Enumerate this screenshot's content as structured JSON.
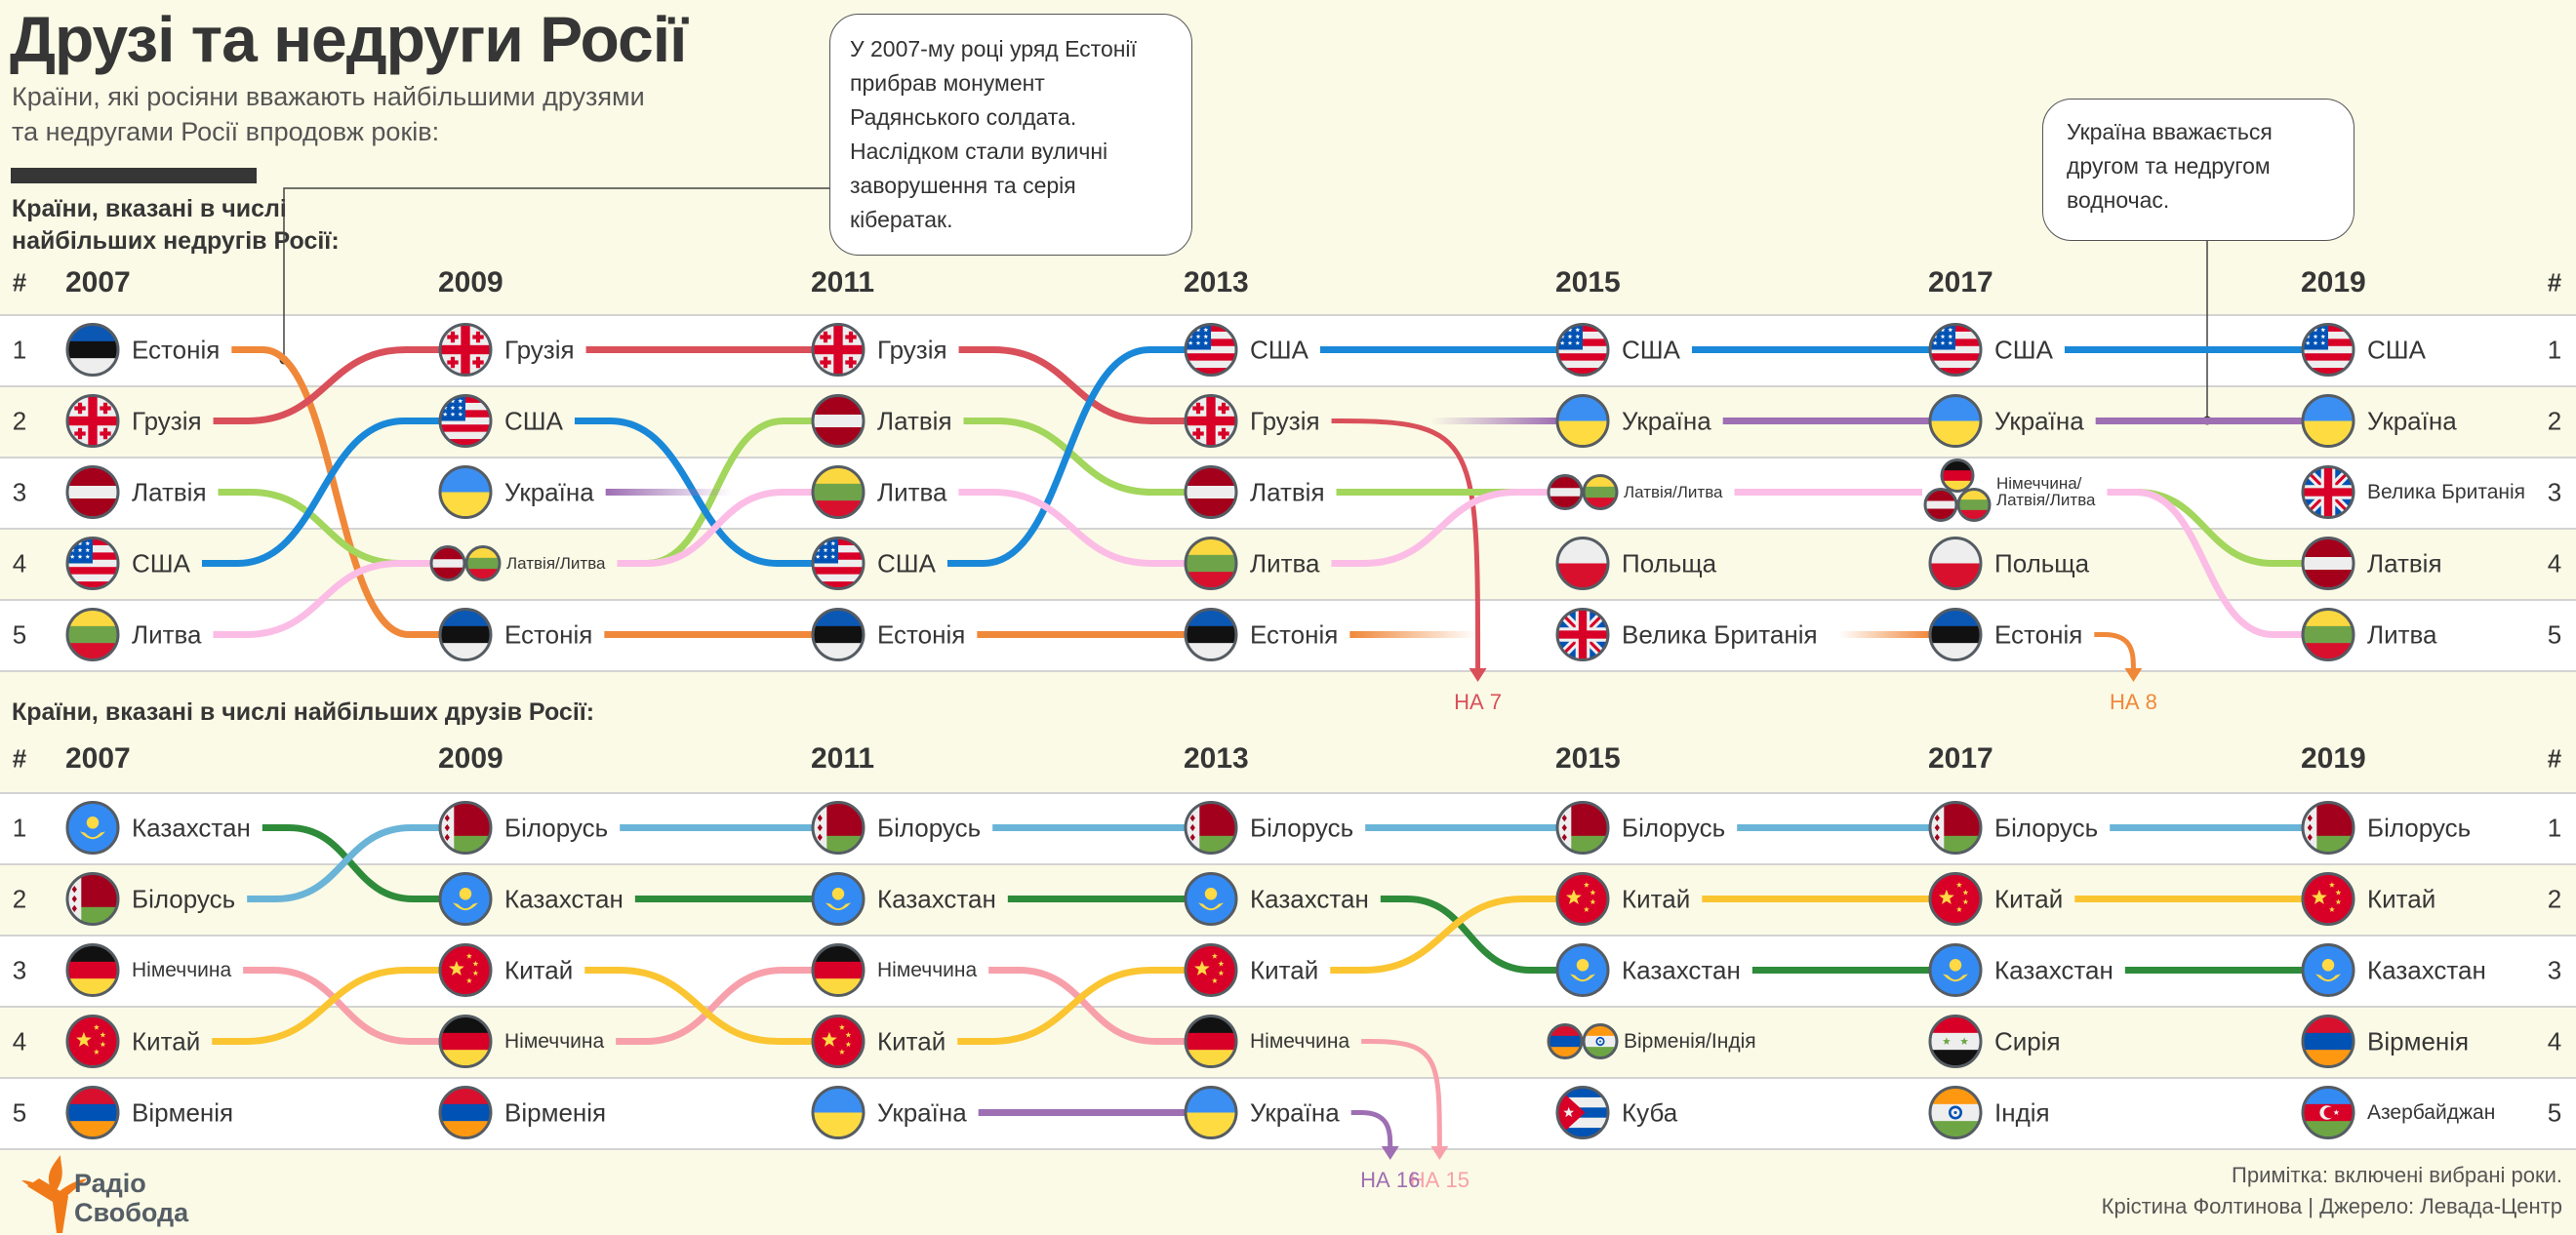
{
  "title": "Друзі та недруги Росії",
  "subtitle_lines": [
    "Країни, які росіяни вважають найбільшими друзями",
    "та недругами Росії впродовж років:"
  ],
  "years": [
    "2007",
    "2009",
    "2011",
    "2013",
    "2015",
    "2017",
    "2019"
  ],
  "rank_header": "#",
  "ranks": [
    "1",
    "2",
    "3",
    "4",
    "5"
  ],
  "callouts": {
    "estonia": "У 2007-му році уряд Естонії прибрав монумент Радянського солдата. Наслідком стали вуличні заворушення та серія кібератак.",
    "ukraine": "Україна вважається другом та недругом водночас."
  },
  "colors": {
    "estonia": "#f0883a",
    "georgia": "#d9505a",
    "latvia": "#a3d65c",
    "usa": "#1a88d8",
    "lithuania": "#fbbde6",
    "ukraine": "#9e6fb3",
    "kazakhstan": "#2e8b3a",
    "belarus": "#6ab4d8",
    "germany": "#f7a0ab",
    "china": "#fbc531"
  },
  "enemies": {
    "section_label_lines": [
      "Країни, вказані в числі",
      "найбільших недругів Росії:"
    ],
    "columns": [
      [
        {
          "flags": [
            "estonia"
          ],
          "label": "Естонія"
        },
        {
          "flags": [
            "georgia"
          ],
          "label": "Грузія"
        },
        {
          "flags": [
            "latvia"
          ],
          "label": "Латвія"
        },
        {
          "flags": [
            "usa"
          ],
          "label": "США"
        },
        {
          "flags": [
            "lithuania"
          ],
          "label": "Литва"
        }
      ],
      [
        {
          "flags": [
            "georgia"
          ],
          "label": "Грузія"
        },
        {
          "flags": [
            "usa"
          ],
          "label": "США"
        },
        {
          "flags": [
            "ukraine"
          ],
          "label": "Україна"
        },
        {
          "flags": [
            "latvia",
            "lithuania"
          ],
          "label": "Латвія/Литва",
          "size": "small"
        },
        {
          "flags": [
            "estonia"
          ],
          "label": "Естонія"
        }
      ],
      [
        {
          "flags": [
            "georgia"
          ],
          "label": "Грузія"
        },
        {
          "flags": [
            "latvia"
          ],
          "label": "Латвія"
        },
        {
          "flags": [
            "lithuania"
          ],
          "label": "Литва"
        },
        {
          "flags": [
            "usa"
          ],
          "label": "США"
        },
        {
          "flags": [
            "estonia"
          ],
          "label": "Естонія"
        }
      ],
      [
        {
          "flags": [
            "usa"
          ],
          "label": "США"
        },
        {
          "flags": [
            "georgia"
          ],
          "label": "Грузія"
        },
        {
          "flags": [
            "latvia"
          ],
          "label": "Латвія"
        },
        {
          "flags": [
            "lithuania"
          ],
          "label": "Литва"
        },
        {
          "flags": [
            "estonia"
          ],
          "label": "Естонія"
        }
      ],
      [
        {
          "flags": [
            "usa"
          ],
          "label": "США"
        },
        {
          "flags": [
            "ukraine"
          ],
          "label": "Україна"
        },
        {
          "flags": [
            "latvia",
            "lithuania"
          ],
          "label": "Латвія/Литва",
          "size": "small"
        },
        {
          "flags": [
            "poland"
          ],
          "label": "Польща"
        },
        {
          "flags": [
            "uk"
          ],
          "label": "Велика Британія"
        }
      ],
      [
        {
          "flags": [
            "usa"
          ],
          "label": "США"
        },
        {
          "flags": [
            "ukraine"
          ],
          "label": "Україна"
        },
        {
          "flags": [
            "germany",
            "latvia",
            "lithuania"
          ],
          "label": "Німеччина/\nЛатвія/Литва",
          "size": "small"
        },
        {
          "flags": [
            "poland"
          ],
          "label": "Польща"
        },
        {
          "flags": [
            "estonia"
          ],
          "label": "Естонія"
        }
      ],
      [
        {
          "flags": [
            "usa"
          ],
          "label": "США"
        },
        {
          "flags": [
            "ukraine"
          ],
          "label": "Україна"
        },
        {
          "flags": [
            "uk"
          ],
          "label": "Велика Британія",
          "size": "mid"
        },
        {
          "flags": [
            "latvia"
          ],
          "label": "Латвія"
        },
        {
          "flags": [
            "lithuania"
          ],
          "label": "Литва"
        }
      ]
    ],
    "tracks": [
      {
        "country": "estonia",
        "ranks": [
          1,
          5,
          5,
          5,
          null,
          5,
          null
        ],
        "fade": [
          [
            3,
            4
          ],
          [
            4,
            5
          ]
        ],
        "exit": {
          "from": 5,
          "label": "НА 8"
        }
      },
      {
        "country": "georgia",
        "ranks": [
          2,
          1,
          1,
          2,
          null,
          null,
          null
        ],
        "exit": {
          "from": 3,
          "label": "НА 7"
        }
      },
      {
        "country": "latvia",
        "ranks": [
          3,
          4,
          2,
          3,
          3,
          3,
          4
        ]
      },
      {
        "country": "usa",
        "ranks": [
          4,
          2,
          4,
          1,
          1,
          1,
          1
        ]
      },
      {
        "country": "lithuania",
        "ranks": [
          5,
          4,
          3,
          4,
          3,
          3,
          5
        ]
      },
      {
        "country": "ukraine",
        "ranks": [
          null,
          3,
          null,
          null,
          2,
          2,
          2
        ],
        "fadeOut": 1,
        "fadeIn": 4
      }
    ]
  },
  "friends": {
    "section_label": "Країни, вказані в числі найбільших друзів Росії:",
    "columns": [
      [
        {
          "flags": [
            "kazakhstan"
          ],
          "label": "Казахстан"
        },
        {
          "flags": [
            "belarus"
          ],
          "label": "Білорусь"
        },
        {
          "flags": [
            "germany"
          ],
          "label": "Німеччина",
          "size": "mid"
        },
        {
          "flags": [
            "china"
          ],
          "label": "Китай"
        },
        {
          "flags": [
            "armenia"
          ],
          "label": "Вірменія"
        }
      ],
      [
        {
          "flags": [
            "belarus"
          ],
          "label": "Білорусь"
        },
        {
          "flags": [
            "kazakhstan"
          ],
          "label": "Казахстан"
        },
        {
          "flags": [
            "china"
          ],
          "label": "Китай"
        },
        {
          "flags": [
            "germany"
          ],
          "label": "Німеччина",
          "size": "mid"
        },
        {
          "flags": [
            "armenia"
          ],
          "label": "Вірменія"
        }
      ],
      [
        {
          "flags": [
            "belarus"
          ],
          "label": "Білорусь"
        },
        {
          "flags": [
            "kazakhstan"
          ],
          "label": "Казахстан"
        },
        {
          "flags": [
            "germany"
          ],
          "label": "Німеччина",
          "size": "mid"
        },
        {
          "flags": [
            "china"
          ],
          "label": "Китай"
        },
        {
          "flags": [
            "ukraine"
          ],
          "label": "Україна"
        }
      ],
      [
        {
          "flags": [
            "belarus"
          ],
          "label": "Білорусь"
        },
        {
          "flags": [
            "kazakhstan"
          ],
          "label": "Казахстан"
        },
        {
          "flags": [
            "china"
          ],
          "label": "Китай"
        },
        {
          "flags": [
            "germany"
          ],
          "label": "Німеччина",
          "size": "mid"
        },
        {
          "flags": [
            "ukraine"
          ],
          "label": "Україна"
        }
      ],
      [
        {
          "flags": [
            "belarus"
          ],
          "label": "Білорусь"
        },
        {
          "flags": [
            "china"
          ],
          "label": "Китай"
        },
        {
          "flags": [
            "kazakhstan"
          ],
          "label": "Казахстан"
        },
        {
          "flags": [
            "armenia",
            "india"
          ],
          "label": "Вірменія/Індія",
          "size": "mid"
        },
        {
          "flags": [
            "cuba"
          ],
          "label": "Куба"
        }
      ],
      [
        {
          "flags": [
            "belarus"
          ],
          "label": "Білорусь"
        },
        {
          "flags": [
            "china"
          ],
          "label": "Китай"
        },
        {
          "flags": [
            "kazakhstan"
          ],
          "label": "Казахстан"
        },
        {
          "flags": [
            "syria"
          ],
          "label": "Сирія"
        },
        {
          "flags": [
            "india"
          ],
          "label": "Індія"
        }
      ],
      [
        {
          "flags": [
            "belarus"
          ],
          "label": "Білорусь"
        },
        {
          "flags": [
            "china"
          ],
          "label": "Китай"
        },
        {
          "flags": [
            "kazakhstan"
          ],
          "label": "Казахстан"
        },
        {
          "flags": [
            "armenia"
          ],
          "label": "Вірменія"
        },
        {
          "flags": [
            "azerbaijan"
          ],
          "label": "Азербайджан",
          "size": "mid"
        }
      ]
    ],
    "tracks": [
      {
        "country": "kazakhstan",
        "ranks": [
          1,
          2,
          2,
          2,
          3,
          3,
          3
        ]
      },
      {
        "country": "belarus",
        "ranks": [
          2,
          1,
          1,
          1,
          1,
          1,
          1
        ]
      },
      {
        "country": "germany",
        "ranks": [
          3,
          4,
          3,
          4,
          null,
          null,
          null
        ],
        "exit": {
          "from": 3,
          "label": "НА 15"
        }
      },
      {
        "country": "china",
        "ranks": [
          4,
          3,
          4,
          3,
          2,
          2,
          2
        ]
      },
      {
        "country": "ukraine",
        "ranks": [
          null,
          null,
          5,
          5,
          null,
          null,
          null
        ],
        "exit": {
          "from": 3,
          "label": "НА 16"
        }
      }
    ]
  },
  "footer": {
    "logo_lines": [
      "Радіо",
      "Свобода"
    ],
    "note": "Примітка: включені вибрані роки.",
    "credit": "Крістина Фолтинова | Джерело: Левада-Центр"
  }
}
